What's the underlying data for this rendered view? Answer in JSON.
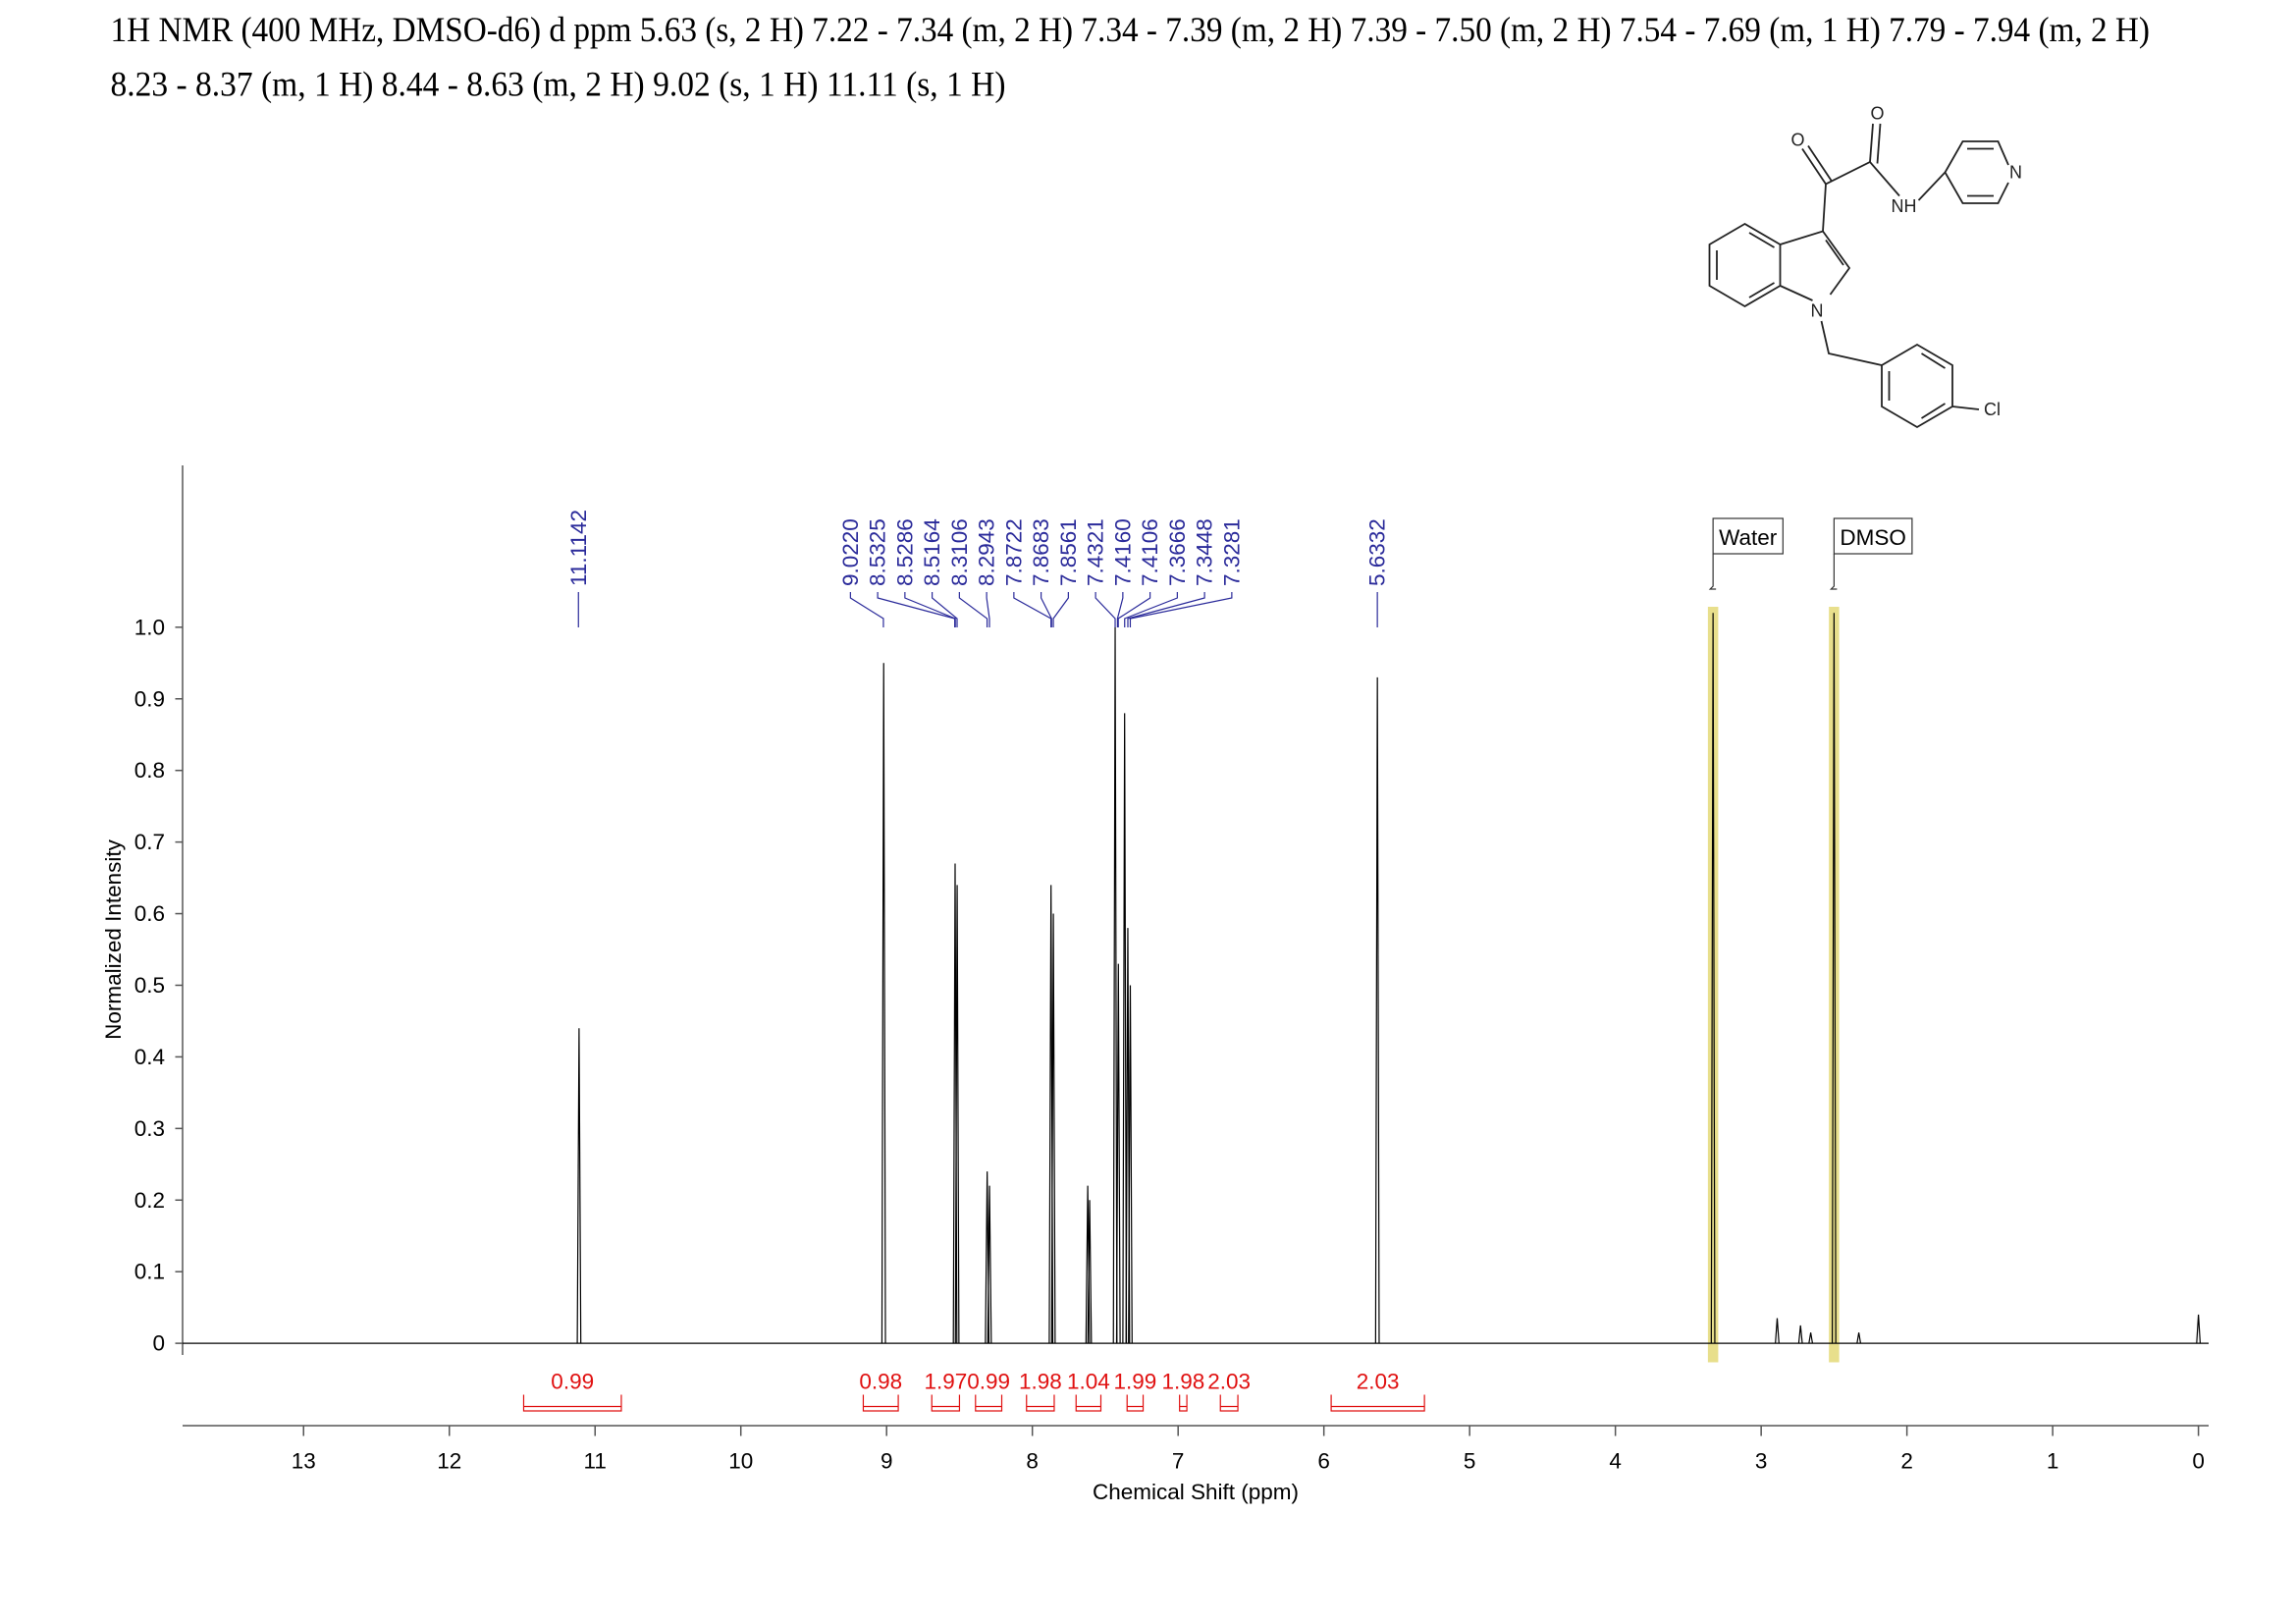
{
  "chart_data": {
    "type": "nmr",
    "title": [
      "1H NMR (400 MHz, DMSO-d6) d ppm 5.63 (s, 2 H) 7.22 - 7.34 (m, 2 H) 7.34 - 7.39 (m, 2 H) 7.39 - 7.50 (m, 2 H) 7.54 - 7.69 (m, 1 H) 7.79 - 7.94 (m, 2 H)",
      "8.23 - 8.37 (m, 1 H) 8.44 - 8.63 (m, 2 H) 9.02 (s, 1 H) 11.11 (s, 1 H)"
    ],
    "x_label": "Chemical Shift (ppm)",
    "y_label": "Normalized Intensity",
    "xlim": [
      13.83,
      -0.07
    ],
    "ylim": [
      -0.115,
      1.226
    ],
    "xticks": [
      13,
      12,
      11,
      10,
      9,
      8,
      7,
      6,
      5,
      4,
      3,
      2,
      1,
      0
    ],
    "yticks": [
      0,
      0.1,
      0.2,
      0.3,
      0.4,
      0.5,
      0.6,
      0.7,
      0.8,
      0.9,
      {
        "value": 1,
        "label": "1.0"
      }
    ],
    "color": "#000000",
    "peaks": {
      "x": [
        11.11,
        9.02,
        8.53,
        8.516,
        8.31,
        8.294,
        7.872,
        7.856,
        7.62,
        7.607,
        7.432,
        7.41,
        7.367,
        7.345,
        7.328,
        5.633,
        3.33,
        2.89,
        2.73,
        2.66,
        2.5,
        2.33,
        0.0
      ],
      "values": [
        0.44,
        0.95,
        0.67,
        0.64,
        0.24,
        0.22,
        0.64,
        0.6,
        0.22,
        0.2,
        1.0,
        0.53,
        0.88,
        0.58,
        0.5,
        0.93,
        1.02,
        0.035,
        0.025,
        0.015,
        1.02,
        0.015,
        0.04
      ]
    },
    "peak_labels": {
      "color": "#2a2a9a",
      "items": [
        {
          "value": 11.1142,
          "label": "11.1142"
        },
        {
          "value": 9.022,
          "label": "9.0220"
        },
        {
          "value": 8.5325,
          "label": "8.5325"
        },
        {
          "value": 8.5286,
          "label": "8.5286"
        },
        {
          "value": 8.5164,
          "label": "8.5164"
        },
        {
          "value": 8.3106,
          "label": "8.3106"
        },
        {
          "value": 8.2943,
          "label": "8.2943"
        },
        {
          "value": 7.8722,
          "label": "7.8722"
        },
        {
          "value": 7.8683,
          "label": "7.8683"
        },
        {
          "value": 7.8561,
          "label": "7.8561"
        },
        {
          "value": 7.4321,
          "label": "7.4321"
        },
        {
          "value": 7.416,
          "label": "7.4160"
        },
        {
          "value": 7.4106,
          "label": "7.4106"
        },
        {
          "value": 7.3666,
          "label": "7.3666"
        },
        {
          "value": 7.3448,
          "label": "7.3448"
        },
        {
          "value": 7.3281,
          "label": "7.3281"
        },
        {
          "value": 5.6332,
          "label": "5.6332"
        }
      ]
    },
    "integrals": {
      "color": "#e01010",
      "items": [
        {
          "range": [
            11.49,
            10.82
          ],
          "value": 0.99
        },
        {
          "range": [
            9.16,
            8.92
          ],
          "value": 0.98
        },
        {
          "range": [
            8.69,
            8.5
          ],
          "value": 1.97
        },
        {
          "range": [
            8.39,
            8.21
          ],
          "value": 0.99
        },
        {
          "range": [
            8.04,
            7.85
          ],
          "value": 1.98
        },
        {
          "range": [
            7.7,
            7.53
          ],
          "value": 1.04
        },
        {
          "range": [
            7.35,
            7.24
          ],
          "value": 1.99
        },
        {
          "range": [
            6.99,
            6.94
          ],
          "value": 1.98
        },
        {
          "range": [
            6.71,
            6.59
          ],
          "value": 2.03
        },
        {
          "range": [
            5.95,
            5.31
          ],
          "value": 2.03
        }
      ]
    },
    "annotations": [
      {
        "x": 3.33,
        "text": "Water"
      },
      {
        "x": 2.5,
        "text": "DMSO"
      }
    ],
    "highlight_color": "#e6dc80",
    "molecule": {
      "atoms": [
        "O",
        "O",
        "NH",
        "N",
        "N",
        "Cl"
      ]
    }
  }
}
